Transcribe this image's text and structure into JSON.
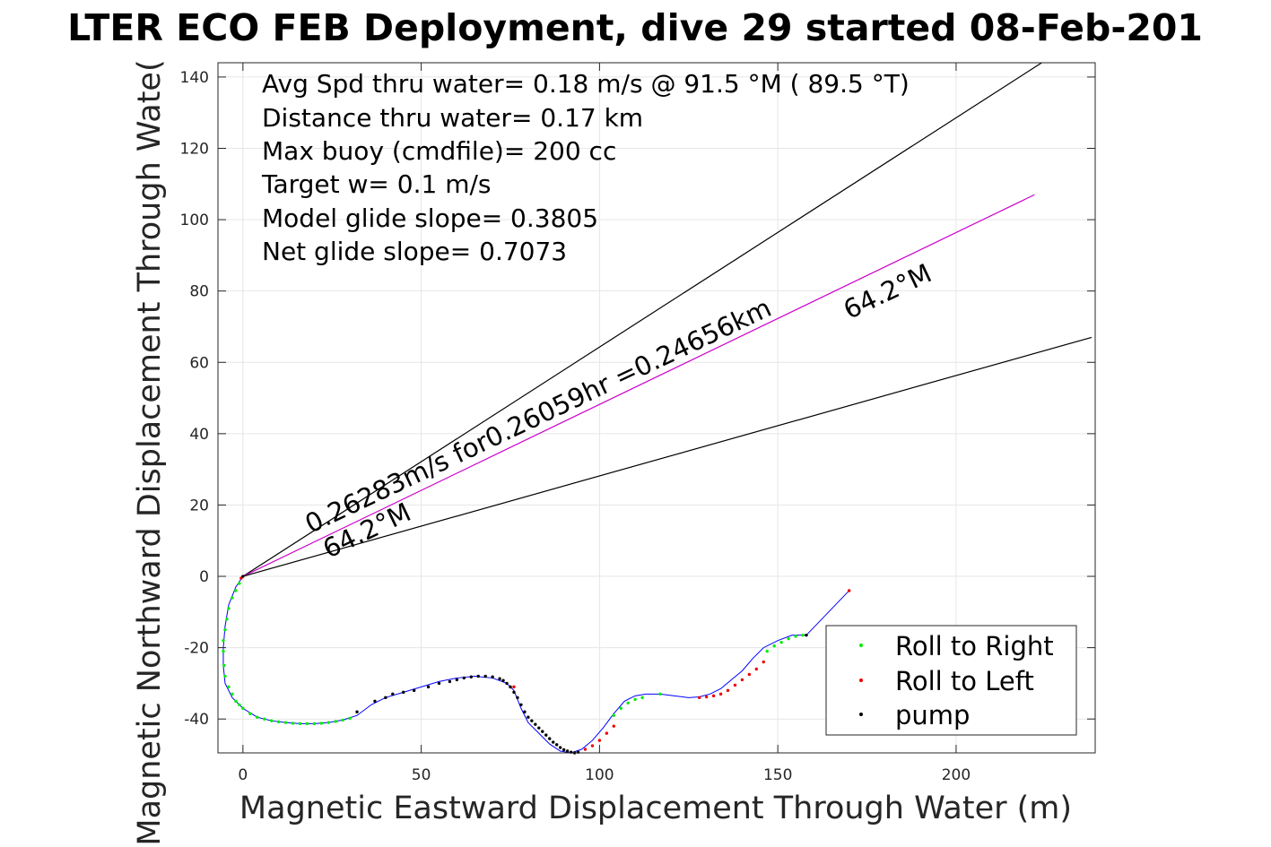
{
  "chart_data": {
    "type": "scatter",
    "title": "LTER ECO FEB Deployment, dive 29 started 08-Feb-201",
    "xlabel": "Magnetic Eastward Displacement Through Water (m)",
    "ylabel": "Magnetic Northward Displacement Through Wate(",
    "xlim": [
      -7,
      239
    ],
    "ylim": [
      -49.5,
      144
    ],
    "xticks": [
      0,
      50,
      100,
      150,
      200
    ],
    "yticks": [
      -40,
      -20,
      0,
      20,
      40,
      60,
      80,
      100,
      120,
      140
    ],
    "grid": true,
    "info_lines": [
      "Avg Spd thru water=  0.18 m/s @  91.5 °M ( 89.5 °T)",
      "Distance thru water=  0.17 km",
      "Max buoy (cmdfile)= 200 cc",
      "Target w= 0.1 m/s",
      "Model glide slope= 0.3805",
      "Net glide slope= 0.7073"
    ],
    "annotations": [
      {
        "text": "0.26283m/s for0.26059hr =0.24656km",
        "x": 19,
        "y": 12,
        "angle_deg": 25.4
      },
      {
        "text": "64.2°M",
        "x": 24,
        "y": 5,
        "angle_deg": 25.4
      },
      {
        "text": "64.2°M",
        "x": 170,
        "y": 72,
        "angle_deg": 25.4
      }
    ],
    "reference_lines": [
      {
        "name": "upper bound",
        "color": "#000000",
        "x": [
          0,
          224
        ],
        "y": [
          0,
          144
        ]
      },
      {
        "name": "heading",
        "color": "#cc00cc",
        "x": [
          0,
          222
        ],
        "y": [
          0,
          107
        ]
      },
      {
        "name": "lower bound",
        "color": "#000000",
        "x": [
          0,
          238
        ],
        "y": [
          0,
          67
        ]
      }
    ],
    "track": {
      "color": "#0000ff",
      "x": [
        0,
        -2,
        -4,
        -5,
        -5.5,
        -5.5,
        -5,
        -3,
        0,
        4,
        8,
        12,
        16,
        20,
        24,
        28,
        32,
        36,
        40,
        45,
        50,
        55,
        60,
        65,
        70,
        74,
        76,
        78,
        80,
        83,
        86,
        89,
        92,
        95,
        98,
        101,
        104,
        107,
        110,
        113,
        117,
        121,
        125,
        128,
        131,
        134,
        137,
        140,
        143,
        146,
        150,
        154,
        158,
        170
      ],
      "y": [
        0,
        -3,
        -8,
        -14,
        -20,
        -25,
        -30,
        -34,
        -37,
        -39.5,
        -40.5,
        -41,
        -41.3,
        -41.3,
        -41,
        -40.3,
        -39,
        -36,
        -34,
        -32.5,
        -31,
        -29.5,
        -28.5,
        -28,
        -28.5,
        -30,
        -32,
        -37,
        -41,
        -44,
        -47,
        -49,
        -49.5,
        -48.5,
        -46,
        -42.5,
        -38.5,
        -35,
        -33.5,
        -33,
        -33,
        -33.5,
        -34,
        -33.8,
        -33,
        -31.5,
        -29,
        -26.5,
        -23,
        -20,
        -18,
        -16.5,
        -16.5,
        -4
      ]
    },
    "roll_right": {
      "color": "#00ee00",
      "x": [
        -1,
        -2,
        -3,
        -4,
        -4.5,
        -5,
        -5.5,
        -5.5,
        -5.3,
        -5,
        -4,
        -3,
        -2,
        -1,
        0,
        2,
        4,
        6,
        8,
        10,
        12,
        14,
        16,
        18,
        20,
        22,
        24,
        26,
        28,
        30,
        104,
        106,
        108,
        110,
        112,
        117,
        147,
        149,
        151,
        153,
        155,
        157
      ],
      "y": [
        -2,
        -4,
        -6,
        -9,
        -12,
        -15,
        -18,
        -21,
        -25,
        -28,
        -31,
        -33,
        -35,
        -36,
        -37,
        -38.5,
        -39.5,
        -40,
        -40.5,
        -40.8,
        -41,
        -41.2,
        -41.3,
        -41.3,
        -41.3,
        -41.2,
        -41,
        -40.7,
        -40.3,
        -39.8,
        -39,
        -37,
        -35.5,
        -34.5,
        -34,
        -33,
        -21,
        -19.5,
        -18.5,
        -17.5,
        -16.8,
        -16.5
      ]
    },
    "roll_left": {
      "color": "#ee0000",
      "x": [
        -0.5,
        76,
        96,
        98,
        100,
        102,
        104,
        128,
        130,
        132,
        134,
        136,
        138,
        140,
        142,
        144,
        146,
        170
      ],
      "y": [
        -0.5,
        -31,
        -48.5,
        -47.5,
        -46,
        -44,
        -42,
        -34,
        -33.8,
        -33.5,
        -33,
        -32,
        -30.5,
        -29,
        -27.5,
        -26,
        -24,
        -4
      ]
    },
    "pump": {
      "color": "#000000",
      "x": [
        0,
        32,
        37,
        40,
        42,
        45,
        48,
        52,
        55,
        58,
        60,
        62,
        64,
        66,
        68,
        70,
        72,
        73,
        74,
        75,
        76,
        77,
        78,
        79,
        80,
        81,
        82,
        83,
        84,
        85,
        86,
        87,
        88,
        89,
        90,
        91,
        92,
        93,
        94,
        158
      ],
      "y": [
        0,
        -38,
        -35,
        -34,
        -33,
        -32.5,
        -32,
        -31,
        -30,
        -29.5,
        -29,
        -28.5,
        -28.2,
        -28,
        -28,
        -28.2,
        -28.7,
        -29.2,
        -30,
        -31,
        -32.5,
        -34,
        -36,
        -38,
        -39.5,
        -40.5,
        -41.5,
        -42.5,
        -43.5,
        -44.5,
        -45.5,
        -46.5,
        -47.2,
        -48,
        -48.6,
        -49,
        -49.3,
        -49.5,
        -49.3,
        -16.5
      ]
    },
    "legend": {
      "placement": "bottom-right",
      "entries": [
        {
          "label": "Roll to Right",
          "color": "#00ee00"
        },
        {
          "label": "Roll to Left",
          "color": "#ee0000"
        },
        {
          "label": "pump",
          "color": "#000000"
        }
      ]
    }
  }
}
